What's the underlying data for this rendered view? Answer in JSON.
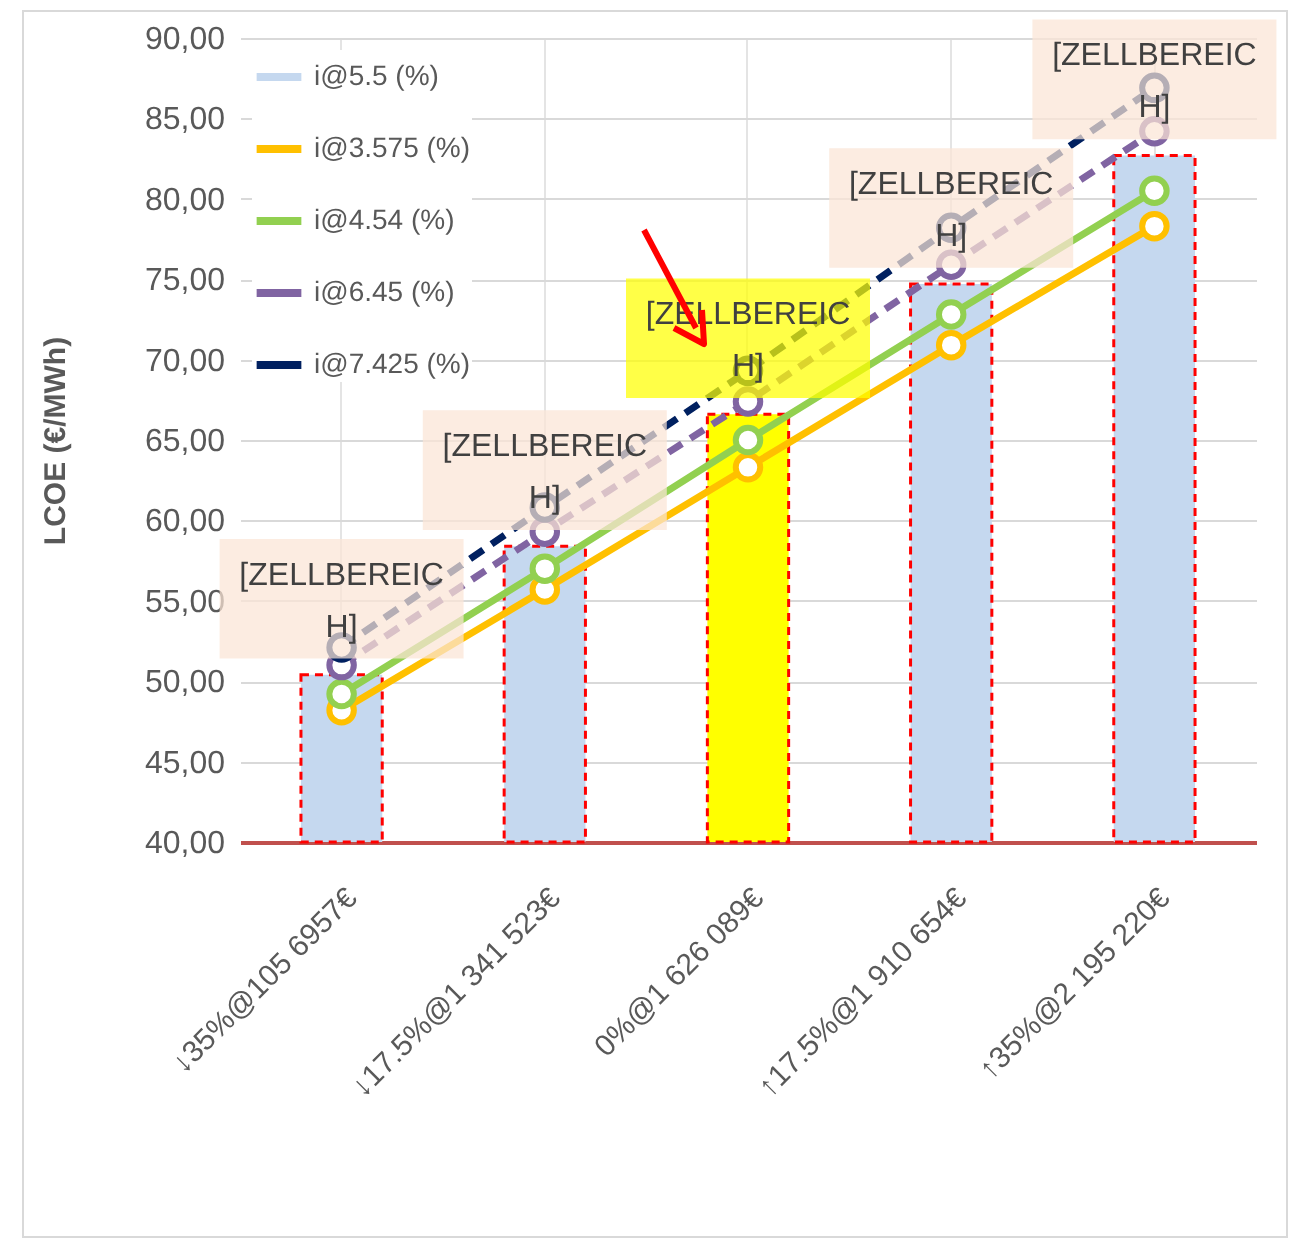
{
  "chart_data": {
    "type": "bar",
    "ylabel": "LCOE (€/MWh)",
    "categories": [
      "↓35%@105 6957€",
      "↓17.5%@1 341 523€",
      "0%@1 626 089€",
      "↑17.5%@1 910 654€",
      "↑35%@2 195 220€"
    ],
    "series": [
      {
        "name": "i@5.5 (%)",
        "type": "bar",
        "color": "#c5d8ef",
        "colors": [
          "#c5d8ef",
          "#c5d8ef",
          "#ffff00",
          "#c5d8ef",
          "#c5d8ef"
        ],
        "values": [
          50.4,
          58.4,
          66.6,
          74.7,
          82.7
        ],
        "value_labels": [
          "[ZELLBEREICH]",
          "[ZELLBEREICH]",
          "[ZELLBEREICH]",
          "[ZELLBEREICH]",
          "[ZELLBEREICH]"
        ]
      },
      {
        "name": "i@3.575 (%)",
        "type": "line",
        "color": "#ffc000",
        "line_style": "solid",
        "values": [
          48.2,
          55.7,
          63.3,
          70.9,
          78.3
        ]
      },
      {
        "name": "i@4.54 (%)",
        "type": "line",
        "color": "#92d050",
        "line_style": "solid",
        "values": [
          49.2,
          57.0,
          65.0,
          72.8,
          80.5
        ]
      },
      {
        "name": "i@6.45 (%)",
        "type": "line",
        "color": "#8064a2",
        "line_style": "dashed",
        "values": [
          51.0,
          59.3,
          67.4,
          75.9,
          84.2
        ]
      },
      {
        "name": "i@7.425 (%)",
        "type": "line",
        "color": "#002060",
        "line_style": "dashed",
        "values": [
          52.1,
          60.8,
          69.3,
          78.2,
          86.9
        ]
      }
    ],
    "ylim": [
      40,
      90
    ],
    "yticks": [
      {
        "value": 40,
        "label": "40,00"
      },
      {
        "value": 45,
        "label": "45,00"
      },
      {
        "value": 50,
        "label": "50,00"
      },
      {
        "value": 55,
        "label": "55,00"
      },
      {
        "value": 60,
        "label": "60,00"
      },
      {
        "value": 65,
        "label": "65,00"
      },
      {
        "value": 70,
        "label": "70,00"
      },
      {
        "value": 75,
        "label": "75,00"
      },
      {
        "value": 80,
        "label": "80,00"
      },
      {
        "value": 85,
        "label": "85,00"
      },
      {
        "value": 90,
        "label": "90,00"
      }
    ],
    "grid": true,
    "legend": "top left",
    "marker": "circle"
  }
}
